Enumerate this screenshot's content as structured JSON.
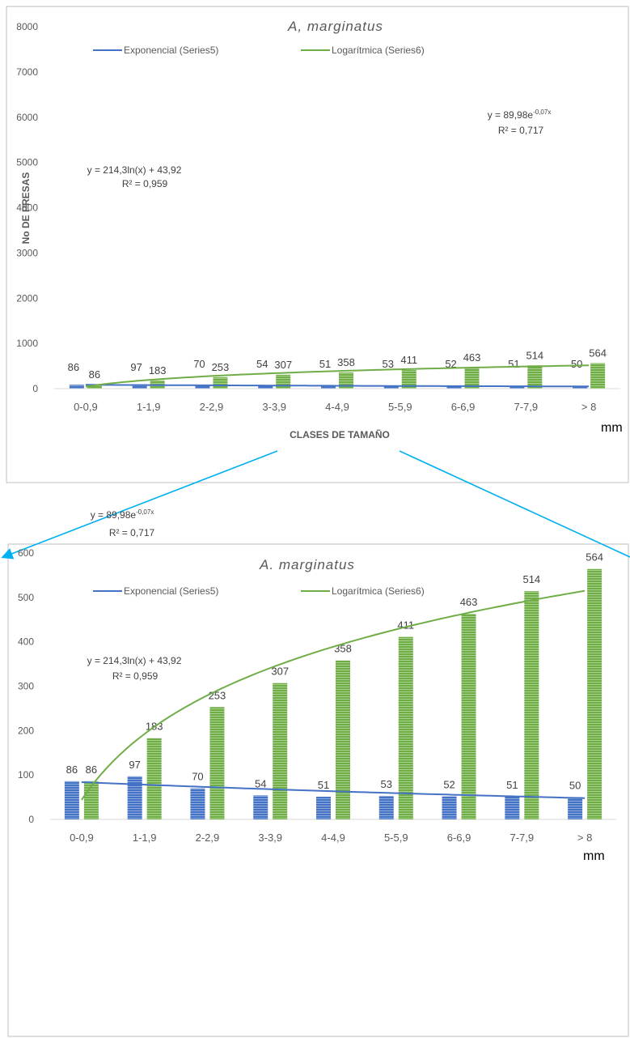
{
  "colors": {
    "blue": "#4472C4",
    "green": "#70AD47",
    "axis": "#595959",
    "grid": "#D9D9D9",
    "arrow": "#00B0F0",
    "frame": "#BFBFBF"
  },
  "chart_data": [
    {
      "type": "bar",
      "title": "A, marginatus",
      "xlabel": "CLASES DE TAMAÑO",
      "ylabel": "No DE PRESAS",
      "unit_label": "mm",
      "ylim": [
        0,
        8000
      ],
      "yticks": [
        "0",
        "1000",
        "2000",
        "3000",
        "4000",
        "5000",
        "6000",
        "7000",
        "8000"
      ],
      "categories": [
        "0-0,9",
        "1-1,9",
        "2-2,9",
        "3-3,9",
        "4-4,9",
        "5-5,9",
        "6-6,9",
        "7-7,9",
        "> 8"
      ],
      "series": [
        {
          "values": [
            86,
            97,
            70,
            54,
            51,
            53,
            52,
            51,
            50
          ],
          "color": "#4472C4"
        },
        {
          "values": [
            86,
            183,
            253,
            307,
            358,
            411,
            463,
            514,
            564
          ],
          "color": "#70AD47"
        }
      ],
      "trendlines": [
        {
          "name": "Exponencial (Series5)",
          "kind": "exp",
          "a": 89.98,
          "b": -0.07,
          "color": "#4472C4",
          "equation": "y = 89,98e",
          "exponent": "-0,07x",
          "r2": "R² = 0,717"
        },
        {
          "name": "Logarítmica (Series6)",
          "kind": "log",
          "a": 214.3,
          "b": 43.92,
          "color": "#70AD47",
          "equation": "y = 214,3ln(x) + 43,92",
          "exponent": "",
          "r2": "R² = 0,959"
        }
      ],
      "legend": "top"
    },
    {
      "type": "bar",
      "title": "A. marginatus",
      "xlabel": "",
      "ylabel": "",
      "unit_label": "mm",
      "ylim": [
        0,
        600
      ],
      "yticks": [
        "0",
        "100",
        "200",
        "300",
        "400",
        "500",
        "600"
      ],
      "categories": [
        "0-0,9",
        "1-1,9",
        "2-2,9",
        "3-3,9",
        "4-4,9",
        "5-5,9",
        "6-6,9",
        "7-7,9",
        "> 8"
      ],
      "series": [
        {
          "values": [
            86,
            97,
            70,
            54,
            51,
            53,
            52,
            51,
            50
          ],
          "color": "#4472C4"
        },
        {
          "values": [
            86,
            183,
            253,
            307,
            358,
            411,
            463,
            514,
            564
          ],
          "color": "#70AD47"
        }
      ],
      "trendlines": [
        {
          "name": "Exponencial (Series5)",
          "kind": "exp",
          "a": 89.98,
          "b": -0.07,
          "color": "#4472C4",
          "equation": "y = 89,98e",
          "exponent": "-0,07x",
          "r2": "R² = 0,717"
        },
        {
          "name": "Logarítmica (Series6)",
          "kind": "log",
          "a": 214.3,
          "b": 43.92,
          "color": "#70AD47",
          "equation": "y = 214,3ln(x) + 43,92",
          "exponent": "",
          "r2": "R² = 0,959"
        }
      ],
      "legend": "top"
    }
  ]
}
